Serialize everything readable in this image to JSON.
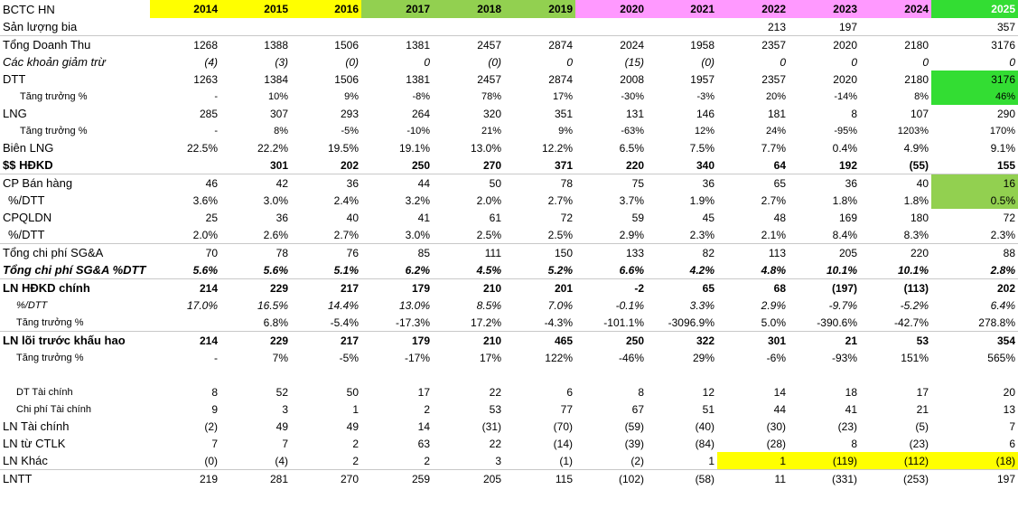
{
  "sheet": {
    "corner": "BCTC HN",
    "years": [
      "2014",
      "2015",
      "2016",
      "2017",
      "2018",
      "2019",
      "2020",
      "2021",
      "2022",
      "2023",
      "2024",
      "2025"
    ],
    "rows": [
      {
        "label": "Sản lượng bia",
        "values": [
          "",
          "",
          "",
          "",
          "",
          "",
          "",
          "",
          "213",
          "197",
          "",
          "357"
        ]
      },
      {
        "label": "Tổng Doanh Thu",
        "values": [
          "1268",
          "1388",
          "1506",
          "1381",
          "2457",
          "2874",
          "2024",
          "1958",
          "2357",
          "2020",
          "2180",
          "3176"
        ]
      },
      {
        "label": "Các khoản giảm trừ",
        "values": [
          "(4)",
          "(3)",
          "(0)",
          "0",
          "(0)",
          "0",
          "(15)",
          "(0)",
          "0",
          "0",
          "0",
          "0"
        ]
      },
      {
        "label": "DTT",
        "values": [
          "1263",
          "1384",
          "1506",
          "1381",
          "2457",
          "2874",
          "2008",
          "1957",
          "2357",
          "2020",
          "2180",
          "3176"
        ]
      },
      {
        "label": "Tăng trưởng %",
        "values": [
          "-",
          "10%",
          "9%",
          "-8%",
          "78%",
          "17%",
          "-30%",
          "-3%",
          "20%",
          "-14%",
          "8%",
          "46%"
        ]
      },
      {
        "label": "LNG",
        "values": [
          "285",
          "307",
          "293",
          "264",
          "320",
          "351",
          "131",
          "146",
          "181",
          "8",
          "107",
          "290"
        ]
      },
      {
        "label": "Tăng trưởng %",
        "values": [
          "-",
          "8%",
          "-5%",
          "-10%",
          "21%",
          "9%",
          "-63%",
          "12%",
          "24%",
          "-95%",
          "1203%",
          "170%"
        ]
      },
      {
        "label": "Biên LNG",
        "values": [
          "22.5%",
          "22.2%",
          "19.5%",
          "19.1%",
          "13.0%",
          "12.2%",
          "6.5%",
          "7.5%",
          "7.7%",
          "0.4%",
          "4.9%",
          "9.1%"
        ]
      },
      {
        "label": "$$ HĐKD",
        "values": [
          "",
          "301",
          "202",
          "250",
          "270",
          "371",
          "220",
          "340",
          "64",
          "192",
          "(55)",
          "155"
        ]
      },
      {
        "label": "CP Bán hàng",
        "values": [
          "46",
          "42",
          "36",
          "44",
          "50",
          "78",
          "75",
          "36",
          "65",
          "36",
          "40",
          "16"
        ]
      },
      {
        "label": " %/DTT",
        "values": [
          "3.6%",
          "3.0%",
          "2.4%",
          "3.2%",
          "2.0%",
          "2.7%",
          "3.7%",
          "1.9%",
          "2.7%",
          "1.8%",
          "1.8%",
          "0.5%"
        ]
      },
      {
        "label": "CPQLDN",
        "values": [
          "25",
          "36",
          "40",
          "41",
          "61",
          "72",
          "59",
          "45",
          "48",
          "169",
          "180",
          "72"
        ]
      },
      {
        "label": " %/DTT",
        "values": [
          "2.0%",
          "2.6%",
          "2.7%",
          "3.0%",
          "2.5%",
          "2.5%",
          "2.9%",
          "2.3%",
          "2.1%",
          "8.4%",
          "8.3%",
          "2.3%"
        ]
      },
      {
        "label": "Tổng chi phí SG&A",
        "values": [
          "70",
          "78",
          "76",
          "85",
          "111",
          "150",
          "133",
          "82",
          "113",
          "205",
          "220",
          "88"
        ]
      },
      {
        "label": "Tổng chi phí SG&A %DTT",
        "values": [
          "5.6%",
          "5.6%",
          "5.1%",
          "6.2%",
          "4.5%",
          "5.2%",
          "6.6%",
          "4.2%",
          "4.8%",
          "10.1%",
          "10.1%",
          "2.8%"
        ]
      },
      {
        "label": "LN HĐKD chính",
        "values": [
          "214",
          "229",
          "217",
          "179",
          "210",
          "201",
          "-2",
          "65",
          "68",
          "(197)",
          "(113)",
          "202"
        ]
      },
      {
        "label": " %/DTT",
        "values": [
          "17.0%",
          "16.5%",
          "14.4%",
          "13.0%",
          "8.5%",
          "7.0%",
          "-0.1%",
          "3.3%",
          "2.9%",
          "-9.7%",
          "-5.2%",
          "6.4%"
        ]
      },
      {
        "label": "Tăng trưởng %",
        "values": [
          "",
          "6.8%",
          "-5.4%",
          "-17.3%",
          "17.2%",
          "-4.3%",
          "-101.1%",
          "-3096.9%",
          "5.0%",
          "-390.6%",
          "-42.7%",
          "278.8%"
        ]
      },
      {
        "label": "LN lõi trước khấu hao",
        "values": [
          "214",
          "229",
          "217",
          "179",
          "210",
          "465",
          "250",
          "322",
          "301",
          "21",
          "53",
          "354"
        ]
      },
      {
        "label": "Tăng trưởng %",
        "values": [
          "-",
          "7%",
          "-5%",
          "-17%",
          "17%",
          "122%",
          "-46%",
          "29%",
          "-6%",
          "-93%",
          "151%",
          "565%"
        ]
      },
      {
        "label": "DT Tài chính",
        "values": [
          "8",
          "52",
          "50",
          "17",
          "22",
          "6",
          "8",
          "12",
          "14",
          "18",
          "17",
          "20"
        ]
      },
      {
        "label": "Chi phí Tài chính",
        "values": [
          "9",
          "3",
          "1",
          "2",
          "53",
          "77",
          "67",
          "51",
          "44",
          "41",
          "21",
          "13"
        ]
      },
      {
        "label": "LN Tài chính",
        "values": [
          "(2)",
          "49",
          "49",
          "14",
          "(31)",
          "(70)",
          "(59)",
          "(40)",
          "(30)",
          "(23)",
          "(5)",
          "7"
        ]
      },
      {
        "label": "LN từ CTLK",
        "values": [
          "7",
          "7",
          "2",
          "63",
          "22",
          "(14)",
          "(39)",
          "(84)",
          "(28)",
          "8",
          "(23)",
          "6"
        ]
      },
      {
        "label": "LN Khác",
        "values": [
          "(0)",
          "(4)",
          "2",
          "2",
          "3",
          "(1)",
          "(2)",
          "1",
          "1",
          "(119)",
          "(112)",
          "(18)"
        ]
      },
      {
        "label": "LNTT",
        "values": [
          "219",
          "281",
          "270",
          "259",
          "205",
          "115",
          "(102)",
          "(58)",
          "11",
          "(331)",
          "(253)",
          "197"
        ]
      }
    ]
  }
}
